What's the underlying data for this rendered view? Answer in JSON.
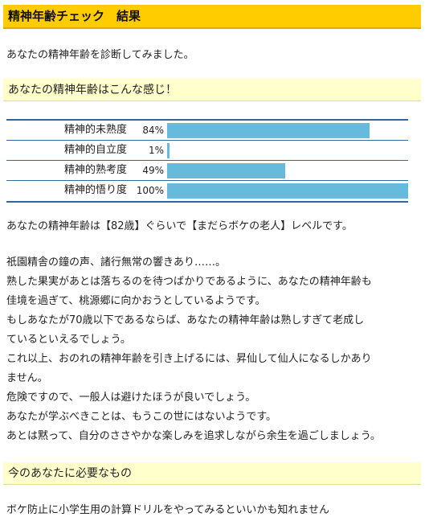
{
  "header": {
    "title": "精神年齢チェック　結果"
  },
  "intro": "あなたの精神年齢を診断してみました。",
  "section1": {
    "title": "あなたの精神年齢はこんな感じ！"
  },
  "scores": [
    {
      "label": "精神的未熟度",
      "percent": 84,
      "percent_label": "84%"
    },
    {
      "label": "精神的自立度",
      "percent": 1,
      "percent_label": "1%"
    },
    {
      "label": "精神的熟考度",
      "percent": 49,
      "percent_label": "49%"
    },
    {
      "label": "精神的悟り度",
      "percent": 100,
      "percent_label": "100%"
    }
  ],
  "colors": {
    "title_bg": "#ffcc00",
    "section_bg": "#ffffcc",
    "bar": "#66bbdd",
    "table_border": "#336699"
  },
  "result_line": "あなたの精神年齢は【82歳】ぐらいで【まだらボケの老人】レベルです。",
  "description": [
    "祇園精舎の鐘の声、諸行無常の響きあり……。",
    "熟した果実があとは落ちるのを待つばかりであるように、あなたの精神年齢も",
    "佳境を過ぎて、桃源郷に向かおうとしているようです。",
    "もしあなたが70歳以下であるならば、あなたの精神年齢は熟しすぎて老成し",
    "ているといえるでしょう。",
    "これ以上、おのれの精神年齢を引き上げるには、昇仙して仙人になるしかあり",
    "ません。",
    "危険ですので、一般人は避けたほうが良いでしょう。",
    "あなたが学ぶべきことは、もうこの世にはないようです。",
    "あとは黙って、自分のささやかな楽しみを追求しながら余生を過ごしましょう。"
  ],
  "section2": {
    "title": "今のあなたに必要なもの"
  },
  "advice": "ボケ防止に小学生用の計算ドリルをやってみるといいかも知れません"
}
